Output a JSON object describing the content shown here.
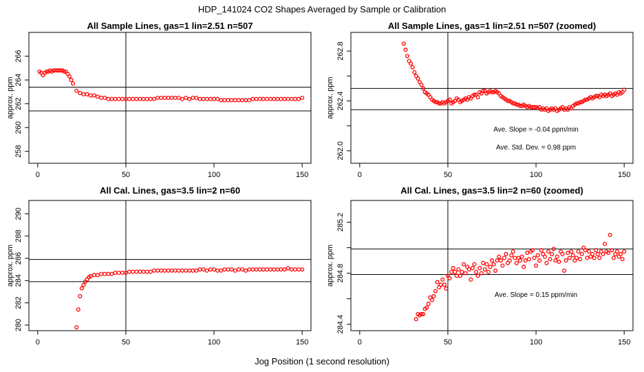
{
  "figure": {
    "title": "HDP_141024  CO2 Shapes Averaged by Sample or Calibration",
    "xlabel": "Jog Position (1 second resolution)",
    "ylabel": "approx. ppm",
    "point_color": "#ff0000"
  },
  "chart_data": [
    {
      "type": "scatter",
      "title": "All Sample Lines, gas=1 lin=2.51 n=507",
      "xlabel": "Jog Position (1 second resolution)",
      "ylabel": "approx. ppm",
      "xlim": [
        -5,
        155
      ],
      "ylim": [
        257,
        268
      ],
      "xticks": [
        0,
        50,
        100,
        150
      ],
      "yticks": [
        258,
        260,
        262,
        264,
        266
      ],
      "vline": 50,
      "hlines": [
        263.4,
        261.4
      ],
      "annotations": [],
      "x": [
        1,
        2,
        3,
        4,
        5,
        6,
        7,
        8,
        9,
        10,
        11,
        12,
        13,
        14,
        15,
        16,
        17,
        18,
        19,
        20,
        22,
        24,
        26,
        28,
        30,
        32,
        34,
        36,
        38,
        40,
        42,
        44,
        46,
        48,
        50,
        52,
        54,
        56,
        58,
        60,
        62,
        64,
        66,
        68,
        70,
        72,
        74,
        76,
        78,
        80,
        82,
        84,
        86,
        88,
        90,
        92,
        94,
        96,
        98,
        100,
        102,
        104,
        106,
        108,
        110,
        112,
        114,
        116,
        118,
        120,
        122,
        124,
        126,
        128,
        130,
        132,
        134,
        136,
        138,
        140,
        142,
        144,
        146,
        148,
        150
      ],
      "y": [
        264.7,
        264.6,
        264.4,
        264.6,
        264.7,
        264.7,
        264.8,
        264.7,
        264.8,
        264.8,
        264.8,
        264.8,
        264.8,
        264.8,
        264.7,
        264.7,
        264.5,
        264.3,
        264.0,
        263.7,
        263.1,
        262.9,
        262.8,
        262.8,
        262.7,
        262.7,
        262.6,
        262.5,
        262.5,
        262.4,
        262.4,
        262.4,
        262.4,
        262.4,
        262.4,
        262.4,
        262.4,
        262.4,
        262.4,
        262.4,
        262.4,
        262.4,
        262.4,
        262.5,
        262.5,
        262.5,
        262.5,
        262.5,
        262.5,
        262.5,
        262.4,
        262.5,
        262.4,
        262.5,
        262.5,
        262.4,
        262.4,
        262.4,
        262.4,
        262.4,
        262.4,
        262.3,
        262.3,
        262.3,
        262.3,
        262.3,
        262.3,
        262.3,
        262.3,
        262.3,
        262.4,
        262.4,
        262.4,
        262.4,
        262.4,
        262.4,
        262.4,
        262.4,
        262.4,
        262.4,
        262.4,
        262.4,
        262.4,
        262.4,
        262.5
      ]
    },
    {
      "type": "scatter",
      "title": "All Sample Lines, gas=1 lin=2.51 n=507 (zoomed)",
      "xlabel": "Jog Position (1 second resolution)",
      "ylabel": "approx. ppm",
      "xlim": [
        -5,
        155
      ],
      "ylim": [
        261.9,
        262.95
      ],
      "xticks": [
        0,
        50,
        100,
        150
      ],
      "yticks": [
        262.0,
        262.4,
        262.8
      ],
      "minor_yticks": [
        262.2,
        262.6
      ],
      "vline": 50,
      "hlines": [
        262.5,
        262.33
      ],
      "annotations": [
        "Ave. Slope =  -0.04  ppm/min",
        "Ave. Std. Dev. =  0.98  ppm"
      ],
      "x": [
        25,
        26,
        27,
        28,
        29,
        30,
        31,
        32,
        33,
        34,
        35,
        36,
        37,
        38,
        39,
        40,
        41,
        42,
        43,
        44,
        45,
        46,
        47,
        48,
        49,
        50,
        51,
        52,
        53,
        54,
        55,
        56,
        57,
        58,
        59,
        60,
        61,
        62,
        63,
        64,
        65,
        66,
        67,
        68,
        69,
        70,
        71,
        72,
        73,
        74,
        75,
        76,
        77,
        78,
        79,
        80,
        81,
        82,
        83,
        84,
        85,
        86,
        87,
        88,
        89,
        90,
        91,
        92,
        93,
        94,
        95,
        96,
        97,
        98,
        99,
        100,
        101,
        102,
        103,
        104,
        105,
        106,
        107,
        108,
        109,
        110,
        111,
        112,
        113,
        114,
        115,
        116,
        117,
        118,
        119,
        120,
        121,
        122,
        123,
        124,
        125,
        126,
        127,
        128,
        129,
        130,
        131,
        132,
        133,
        134,
        135,
        136,
        137,
        138,
        139,
        140,
        141,
        142,
        143,
        144,
        145,
        146,
        147,
        148,
        149,
        150
      ],
      "y": [
        262.86,
        262.81,
        262.76,
        262.72,
        262.7,
        262.67,
        262.63,
        262.6,
        262.58,
        262.55,
        262.53,
        262.5,
        262.47,
        262.46,
        262.45,
        262.43,
        262.41,
        262.4,
        262.39,
        262.39,
        262.38,
        262.38,
        262.39,
        262.38,
        262.39,
        262.4,
        262.41,
        262.38,
        262.39,
        262.4,
        262.42,
        262.41,
        262.39,
        262.4,
        262.41,
        262.42,
        262.41,
        262.43,
        262.42,
        262.44,
        262.45,
        262.45,
        262.43,
        262.47,
        262.46,
        262.48,
        262.48,
        262.46,
        262.47,
        262.48,
        262.47,
        262.47,
        262.48,
        262.47,
        262.46,
        262.44,
        262.43,
        262.42,
        262.41,
        262.4,
        262.4,
        262.39,
        262.38,
        262.38,
        262.37,
        262.37,
        262.36,
        262.36,
        262.37,
        262.36,
        262.35,
        262.36,
        262.35,
        262.35,
        262.35,
        262.35,
        262.34,
        262.35,
        262.33,
        262.34,
        262.33,
        262.34,
        262.32,
        262.33,
        262.34,
        262.33,
        262.34,
        262.32,
        262.33,
        262.34,
        262.35,
        262.33,
        262.34,
        262.33,
        262.35,
        262.34,
        262.36,
        262.37,
        262.38,
        262.38,
        262.39,
        262.39,
        262.4,
        262.41,
        262.41,
        262.42,
        262.43,
        262.42,
        262.43,
        262.44,
        262.44,
        262.43,
        262.45,
        262.44,
        262.45,
        262.44,
        262.45,
        262.46,
        262.44,
        262.45,
        262.46,
        262.45,
        262.47,
        262.46,
        262.47,
        262.49
      ]
    },
    {
      "type": "scatter",
      "title": "All Cal. Lines, gas=3.5 lin=2 n=60",
      "xlabel": "Jog Position (1 second resolution)",
      "ylabel": "approx. ppm",
      "xlim": [
        -5,
        155
      ],
      "ylim": [
        279.5,
        291.2
      ],
      "xticks": [
        0,
        50,
        100,
        150
      ],
      "yticks": [
        280,
        282,
        284,
        286,
        288,
        290
      ],
      "vline": 50,
      "hlines": [
        285.9,
        283.9
      ],
      "annotations": [],
      "x": [
        22,
        23,
        24,
        25,
        26,
        27,
        28,
        29,
        30,
        32,
        34,
        36,
        38,
        40,
        42,
        44,
        46,
        48,
        50,
        52,
        54,
        56,
        58,
        60,
        62,
        64,
        66,
        68,
        70,
        72,
        74,
        76,
        78,
        80,
        82,
        84,
        86,
        88,
        90,
        92,
        94,
        96,
        98,
        100,
        102,
        104,
        106,
        108,
        110,
        112,
        114,
        116,
        118,
        120,
        122,
        124,
        126,
        128,
        130,
        132,
        134,
        136,
        138,
        140,
        142,
        144,
        146,
        148,
        150
      ],
      "y": [
        279.8,
        281.4,
        282.6,
        283.3,
        283.6,
        283.9,
        284.1,
        284.3,
        284.4,
        284.5,
        284.5,
        284.6,
        284.6,
        284.6,
        284.6,
        284.7,
        284.7,
        284.7,
        284.7,
        284.8,
        284.8,
        284.8,
        284.8,
        284.8,
        284.8,
        284.8,
        284.9,
        284.9,
        284.9,
        284.9,
        284.9,
        284.9,
        284.9,
        284.9,
        284.9,
        284.9,
        284.9,
        284.9,
        284.9,
        285.0,
        285.0,
        284.9,
        285.0,
        285.0,
        284.9,
        284.9,
        285.0,
        285.0,
        285.0,
        284.9,
        285.0,
        285.0,
        284.9,
        285.0,
        285.0,
        285.0,
        285.0,
        285.0,
        285.0,
        285.0,
        285.0,
        285.0,
        285.0,
        285.0,
        285.1,
        285.0,
        285.0,
        285.0,
        285.0
      ]
    },
    {
      "type": "scatter",
      "title": "All Cal. Lines, gas=3.5 lin=2 n=60 (zoomed)",
      "xlabel": "Jog Position (1 second resolution)",
      "ylabel": "approx. ppm",
      "xlim": [
        -5,
        155
      ],
      "ylim": [
        284.35,
        285.37
      ],
      "xticks": [
        0,
        50,
        100,
        150
      ],
      "yticks": [
        284.4,
        284.8,
        285.2
      ],
      "minor_yticks": [
        284.6,
        285.0
      ],
      "vline": 50,
      "hlines": [
        284.99,
        284.79
      ],
      "annotations": [
        "Ave. Slope =  0.15  ppm/min"
      ],
      "x": [
        32,
        33,
        34,
        35,
        36,
        37,
        38,
        39,
        40,
        41,
        42,
        43,
        44,
        45,
        46,
        47,
        48,
        49,
        50,
        51,
        52,
        53,
        54,
        55,
        56,
        57,
        58,
        59,
        60,
        61,
        62,
        63,
        64,
        65,
        66,
        67,
        68,
        69,
        70,
        71,
        72,
        73,
        74,
        75,
        76,
        77,
        78,
        79,
        80,
        81,
        82,
        83,
        84,
        85,
        86,
        87,
        88,
        89,
        90,
        91,
        92,
        93,
        94,
        95,
        96,
        97,
        98,
        99,
        100,
        101,
        102,
        103,
        104,
        105,
        106,
        107,
        108,
        109,
        110,
        111,
        112,
        113,
        114,
        115,
        116,
        117,
        118,
        119,
        120,
        121,
        122,
        123,
        124,
        125,
        126,
        127,
        128,
        129,
        130,
        131,
        132,
        133,
        134,
        135,
        136,
        137,
        138,
        139,
        140,
        141,
        142,
        143,
        144,
        145,
        146,
        147,
        148,
        149,
        150
      ],
      "y": [
        284.44,
        284.48,
        284.47,
        284.48,
        284.48,
        284.52,
        284.53,
        284.56,
        284.61,
        284.59,
        284.62,
        284.66,
        284.73,
        284.69,
        284.71,
        284.75,
        284.71,
        284.68,
        284.78,
        284.76,
        284.81,
        284.84,
        284.81,
        284.78,
        284.83,
        284.78,
        284.81,
        284.87,
        284.8,
        284.85,
        284.83,
        284.75,
        284.84,
        284.87,
        284.81,
        284.78,
        284.84,
        284.8,
        284.88,
        284.83,
        284.87,
        284.81,
        284.85,
        284.9,
        284.87,
        284.82,
        284.9,
        284.93,
        284.9,
        284.86,
        284.92,
        284.95,
        284.88,
        284.9,
        284.94,
        284.97,
        284.92,
        284.88,
        284.92,
        284.9,
        284.93,
        284.85,
        284.9,
        284.96,
        284.91,
        284.97,
        284.98,
        284.92,
        284.86,
        284.94,
        284.9,
        284.98,
        284.95,
        284.93,
        284.88,
        284.97,
        284.91,
        284.95,
        284.99,
        284.9,
        284.93,
        284.89,
        284.97,
        284.95,
        284.82,
        284.9,
        284.96,
        284.92,
        284.97,
        284.94,
        284.9,
        284.92,
        284.97,
        284.91,
        284.95,
        285.0,
        284.98,
        284.92,
        284.97,
        284.93,
        284.95,
        284.92,
        284.98,
        284.95,
        284.92,
        284.97,
        284.95,
        285.03,
        284.97,
        284.96,
        285.1,
        284.98,
        284.92,
        284.95,
        284.97,
        284.93,
        284.95,
        284.91,
        284.97
      ]
    }
  ]
}
